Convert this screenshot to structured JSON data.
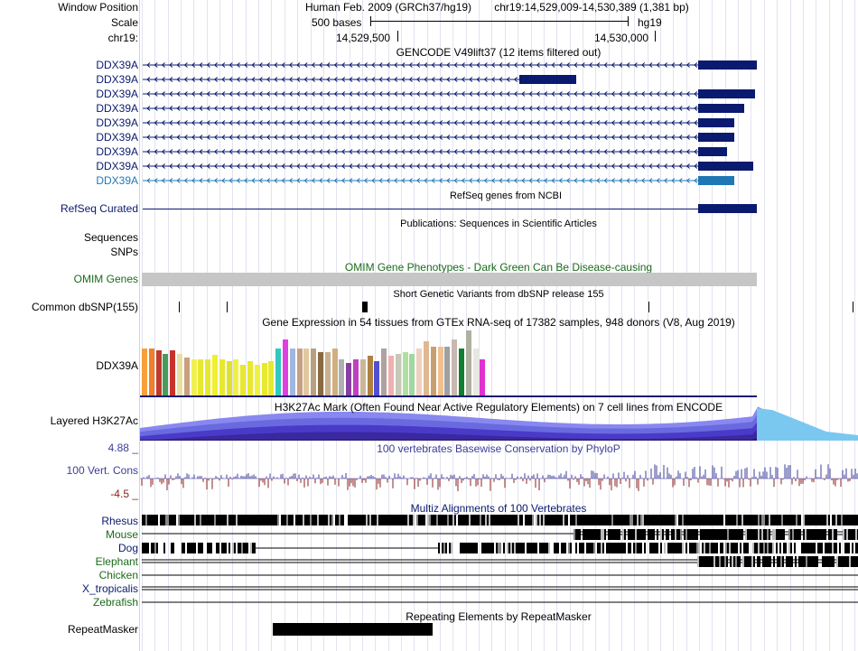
{
  "header": {
    "window_position_label": "Window Position",
    "scale_label": "Scale",
    "chrom_label": "chr19:",
    "assembly": "Human Feb. 2009 (GRCh37/hg19)",
    "position": "chr19:14,529,009-14,530,389 (1,381 bp)",
    "scale_text": "500 bases",
    "db": "hg19",
    "tick1": "14,529,500",
    "tick2": "14,530,000"
  },
  "gencode": {
    "title": "GENCODE V49lift37 (12 items filtered out)",
    "labels": [
      "DDX39A",
      "DDX39A",
      "DDX39A",
      "DDX39A",
      "DDX39A",
      "DDX39A",
      "DDX39A",
      "DDX39A",
      "DDX39A"
    ],
    "colors": {
      "dark": "#0a1a6e",
      "light": "#1f78b4"
    }
  },
  "refseq": {
    "title": "RefSeq genes from NCBI",
    "label": "RefSeq Curated"
  },
  "publications": {
    "title": "Publications: Sequences in Scientific Articles",
    "label1": "Sequences",
    "label2": "SNPs"
  },
  "omim": {
    "title": "OMIM Gene Phenotypes - Dark Green Can Be Disease-causing",
    "label": "OMIM Genes",
    "color": "#1a6b1a"
  },
  "dbsnp": {
    "title": "Short Genetic Variants from dbSNP release 155",
    "label": "Common dbSNP(155)"
  },
  "gtex": {
    "title": "Gene Expression in 54 tissues from GTEx RNA-seq of 17382 samples, 948 donors (V8, Aug 2019)",
    "label": "DDX39A"
  },
  "h3k27ac": {
    "title": "H3K27Ac Mark (Often Found Near Active Regulatory Elements) on 7 cell lines from ENCODE",
    "label": "Layered H3K27Ac"
  },
  "conservation": {
    "title": "100 vertebrates Basewise Conservation by PhyloP",
    "label": "100 Vert. Cons",
    "max": "4.88 _",
    "min": "-4.5 _",
    "color": "#3d3d9a",
    "neg_color": "#8a2020"
  },
  "multiz": {
    "title": "Multiz Alignments of 100 Vertebrates",
    "species": [
      "Rhesus",
      "Mouse",
      "Dog",
      "Elephant",
      "Chicken",
      "X_tropicalis",
      "Zebrafish"
    ]
  },
  "repeatmasker": {
    "title": "Repeating Elements by RepeatMasker",
    "label": "RepeatMasker"
  }
}
